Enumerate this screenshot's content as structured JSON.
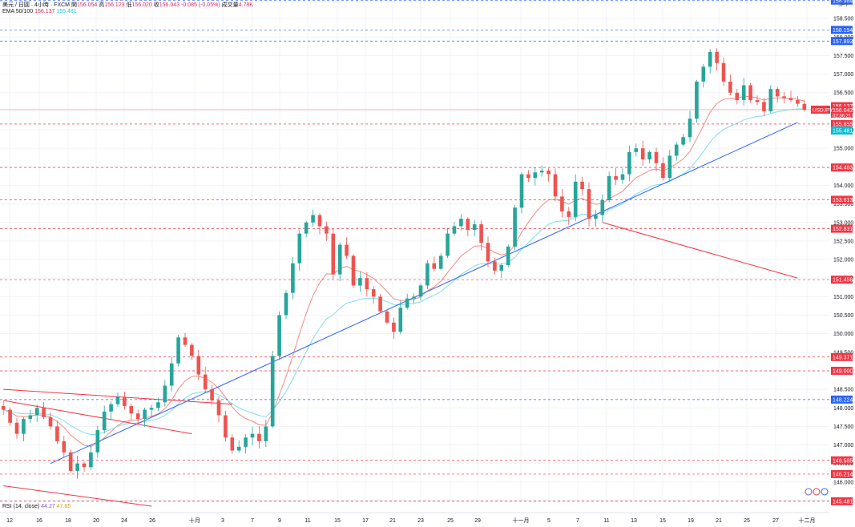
{
  "header": {
    "symbol": "美元 / 日圓 · 4小時 · FXCM",
    "open_label": "開",
    "open": "156.054",
    "high_label": "高",
    "high": "156.123",
    "low_label": "低",
    "low": "156.020",
    "close_label": "收",
    "close": "156.043",
    "change": "-0.085 (-0.05%)",
    "volume_label": "成交量",
    "volume": "4.78K",
    "ema_label": "EMA 50/100",
    "ema50": "156.137",
    "ema100": "155.481"
  },
  "rsi": {
    "label": "RSI (14, close)",
    "value1": "44.27",
    "value2": "47.65"
  },
  "unit_label": "JPY",
  "colors": {
    "up": "#26a69a",
    "down": "#ef5350",
    "ema50": "#f28b82",
    "ema100": "#80deea",
    "trend_blue": "#2962ff",
    "trend_red": "#f23645",
    "grid": "#f0f3fa"
  },
  "chart_data": {
    "type": "candlestick",
    "x_labels": [
      "12",
      "16",
      "18",
      "20",
      "24",
      "26",
      "十月",
      "3",
      "7",
      "9",
      "11",
      "15",
      "17",
      "21",
      "23",
      "25",
      "29",
      "十一月",
      "5",
      "7",
      "11",
      "13",
      "15",
      "19",
      "21",
      "25",
      "27",
      "十二月"
    ],
    "y_ticks": [
      "158.500",
      "158.000",
      "157.500",
      "157.000",
      "156.500",
      "156.000",
      "155.500",
      "155.000",
      "154.500",
      "154.000",
      "153.500",
      "153.000",
      "152.500",
      "152.000",
      "151.500",
      "151.000",
      "150.500",
      "150.000",
      "149.500",
      "149.000",
      "148.500",
      "148.000",
      "147.500",
      "147.000",
      "146.500",
      "146.000"
    ],
    "ylim": [
      145.5,
      159.0
    ],
    "price_levels": [
      {
        "value": 158.984,
        "label": "158.984",
        "style": "blue"
      },
      {
        "value": 158.194,
        "label": "158.194",
        "style": "blue"
      },
      {
        "value": 157.893,
        "label": "157.893",
        "style": "blue"
      },
      {
        "value": 155.655,
        "label": "155.655",
        "style": "red"
      },
      {
        "value": 154.483,
        "label": "154.483",
        "style": "red"
      },
      {
        "value": 153.613,
        "label": "153.613",
        "style": "red"
      },
      {
        "value": 152.831,
        "label": "152.831",
        "style": "red"
      },
      {
        "value": 151.458,
        "label": "151.458",
        "style": "red"
      },
      {
        "value": 149.371,
        "label": "149.371",
        "style": "red"
      },
      {
        "value": 149.0,
        "label": "149.000",
        "style": "red"
      },
      {
        "value": 148.224,
        "label": "148.224",
        "style": "blue"
      },
      {
        "value": 146.585,
        "label": "146.585",
        "style": "red"
      },
      {
        "value": 146.214,
        "label": "146.214",
        "style": "red"
      },
      {
        "value": 145.481,
        "label": "145.481",
        "style": "red"
      }
    ],
    "last_price": {
      "value": 156.043,
      "label": "156.043",
      "symbol": "USDJPY",
      "countdown": "02:36:21"
    },
    "ema50_tag": {
      "value": 156.137,
      "label": "156.137"
    },
    "ema100_tag": {
      "value": 155.481,
      "label": "155.481"
    },
    "closes": [
      147.95,
      147.6,
      147.3,
      147.7,
      147.8,
      148.0,
      147.75,
      147.5,
      147.1,
      146.8,
      146.3,
      146.5,
      146.4,
      146.8,
      147.4,
      147.9,
      148.1,
      148.3,
      148.05,
      147.85,
      147.7,
      147.95,
      148.0,
      148.15,
      148.6,
      149.2,
      149.9,
      149.7,
      149.4,
      148.9,
      148.5,
      148.2,
      147.8,
      147.2,
      146.85,
      146.95,
      147.2,
      147.3,
      147.1,
      147.5,
      149.4,
      150.5,
      151.1,
      151.9,
      152.7,
      153.0,
      153.2,
      152.9,
      152.7,
      151.6,
      152.4,
      152.1,
      151.3,
      151.5,
      151.2,
      151.0,
      150.6,
      150.3,
      150.05,
      150.7,
      150.95,
      151.0,
      151.3,
      151.9,
      151.75,
      152.1,
      152.7,
      152.9,
      153.1,
      152.8,
      152.95,
      152.45,
      151.95,
      151.7,
      151.85,
      152.35,
      153.4,
      154.3,
      154.2,
      154.35,
      154.4,
      154.3,
      153.7,
      153.3,
      153.15,
      154.1,
      153.9,
      153.1,
      153.2,
      153.6,
      154.25,
      154.15,
      154.3,
      154.9,
      155.0,
      154.7,
      154.9,
      154.6,
      154.2,
      154.8,
      155.1,
      155.3,
      155.8,
      156.8,
      157.2,
      157.6,
      157.3,
      156.8,
      156.5,
      156.3,
      156.7,
      156.3,
      156.25,
      156.0,
      156.6,
      156.4,
      156.35,
      156.3,
      156.2,
      156.04
    ],
    "trendlines": [
      {
        "color": "blue",
        "from": [
          7,
          146.5
        ],
        "to": [
          118,
          155.7
        ]
      },
      {
        "color": "red",
        "from": [
          0,
          148.5
        ],
        "to": [
          34,
          148.1
        ]
      },
      {
        "color": "red",
        "from": [
          0,
          148.2
        ],
        "to": [
          28,
          147.3
        ]
      },
      {
        "color": "red",
        "from": [
          0,
          145.9
        ],
        "to": [
          22,
          145.35
        ]
      },
      {
        "color": "red",
        "from": [
          89,
          153.0
        ],
        "to": [
          118,
          151.5
        ]
      },
      {
        "color": "red",
        "from": [
          229,
          157.9
        ],
        "to": [
          253,
          156.6
        ]
      }
    ]
  }
}
